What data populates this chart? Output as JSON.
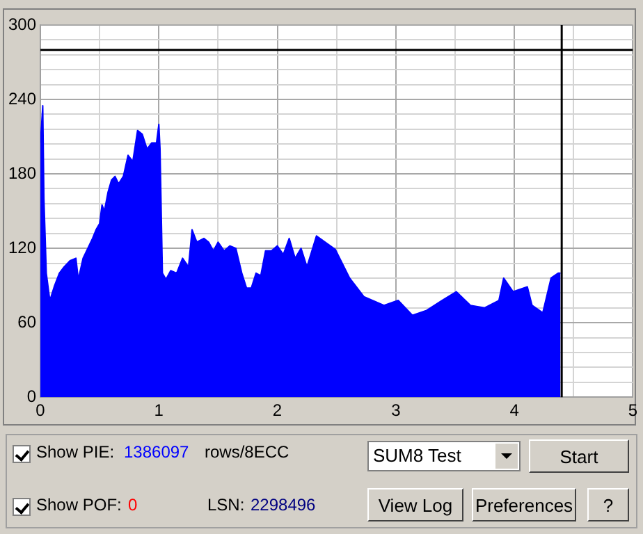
{
  "chart_data": {
    "type": "area",
    "x": [
      0,
      0.02,
      0.03,
      0.05,
      0.08,
      0.12,
      0.16,
      0.2,
      0.25,
      0.3,
      0.32,
      0.36,
      0.4,
      0.44,
      0.47,
      0.5,
      0.52,
      0.54,
      0.57,
      0.6,
      0.63,
      0.66,
      0.7,
      0.74,
      0.78,
      0.82,
      0.86,
      0.9,
      0.94,
      0.98,
      1.0,
      1.01,
      1.03,
      1.06,
      1.1,
      1.15,
      1.2,
      1.25,
      1.28,
      1.32,
      1.38,
      1.42,
      1.46,
      1.5,
      1.55,
      1.6,
      1.65,
      1.7,
      1.74,
      1.78,
      1.82,
      1.86,
      1.9,
      1.95,
      2.0,
      2.05,
      2.1,
      2.15,
      2.2,
      2.25,
      2.33,
      2.49,
      2.61,
      2.73,
      2.9,
      3.02,
      3.14,
      3.26,
      3.39,
      3.51,
      3.63,
      3.75,
      3.87,
      3.91,
      3.99,
      4.11,
      4.15,
      4.24,
      4.31,
      4.37,
      4.39
    ],
    "series": [
      {
        "color": "#0000ff",
        "values": [
          205,
          235,
          160,
          100,
          78,
          90,
          100,
          105,
          110,
          112,
          95,
          112,
          120,
          128,
          135,
          140,
          155,
          150,
          165,
          175,
          178,
          172,
          178,
          195,
          190,
          215,
          212,
          200,
          205,
          205,
          220,
          200,
          100,
          95,
          102,
          100,
          112,
          105,
          135,
          125,
          128,
          125,
          118,
          125,
          118,
          122,
          120,
          100,
          88,
          88,
          100,
          98,
          118,
          118,
          122,
          115,
          128,
          112,
          120,
          105,
          130,
          119,
          96,
          81,
          74,
          78,
          66,
          70,
          78,
          85,
          74,
          72,
          78,
          96,
          85,
          89,
          74,
          68,
          96,
          100,
          100
        ]
      }
    ],
    "xlim": [
      0,
      5
    ],
    "xticks": [
      0,
      {
        "value": 0.5,
        "label": null
      },
      1,
      {
        "value": 1.5,
        "label": null
      },
      2,
      {
        "value": 2.5,
        "label": null
      },
      3,
      {
        "value": 3.5,
        "label": null
      },
      4,
      {
        "value": 4.5,
        "label": null
      },
      5
    ],
    "ylim": [
      0,
      300
    ],
    "yticks": [
      0,
      {
        "value": 12,
        "label": null
      },
      {
        "value": 24,
        "label": null
      },
      {
        "value": 36,
        "label": null
      },
      {
        "value": 48,
        "label": null
      },
      60,
      {
        "value": 72,
        "label": null
      },
      {
        "value": 84,
        "label": null
      },
      {
        "value": 96,
        "label": null
      },
      {
        "value": 108,
        "label": null
      },
      120,
      {
        "value": 132,
        "label": null
      },
      {
        "value": 144,
        "label": null
      },
      {
        "value": 156,
        "label": null
      },
      {
        "value": 168,
        "label": null
      },
      180,
      {
        "value": 192,
        "label": null
      },
      {
        "value": 204,
        "label": null
      },
      {
        "value": 216,
        "label": null
      },
      {
        "value": 228,
        "label": null
      },
      240,
      {
        "value": 252,
        "label": null
      },
      {
        "value": 264,
        "label": null
      },
      {
        "value": 276,
        "label": null
      },
      {
        "value": 288,
        "label": null
      },
      300
    ],
    "grid": true,
    "legend": false,
    "ref_lines": [
      {
        "axis": "y",
        "value": 280,
        "color": "#000000"
      },
      {
        "axis": "x",
        "value": 4.4,
        "color": "#000000"
      }
    ],
    "annotations": [
      "Show PIE:",
      "1386097",
      "rows/8ECC",
      "SUM8 Test",
      "Start",
      "Show POF:",
      "0",
      "LSN:",
      "2298496",
      "View Log",
      "Preferences",
      "?"
    ]
  }
}
